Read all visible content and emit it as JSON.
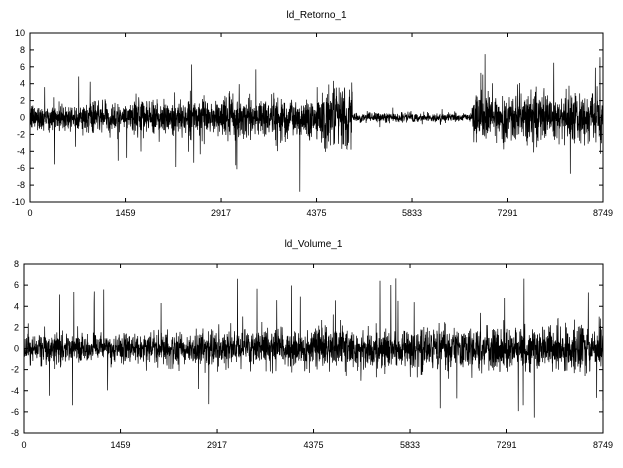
{
  "chart_data": [
    {
      "type": "line",
      "title": "ld_Retorno_1",
      "xlabel": "",
      "ylabel": "",
      "xlim": [
        0,
        8749
      ],
      "ylim": [
        -10,
        10
      ],
      "xticks": [
        0,
        1459,
        2917,
        4375,
        5833,
        7291,
        8749
      ],
      "yticks": [
        -10,
        -8,
        -6,
        -4,
        -2,
        0,
        2,
        4,
        6,
        8,
        10
      ],
      "grid": false,
      "color": "#000000",
      "n_points": 8750,
      "amplitude_profile": [
        {
          "x": [
            0,
            1459
          ],
          "typical_abs": 1.1,
          "extreme_abs": 5.8
        },
        {
          "x": [
            1459,
            2917
          ],
          "typical_abs": 1.4,
          "extreme_abs": 6.5
        },
        {
          "x": [
            2917,
            4375
          ],
          "typical_abs": 1.7,
          "extreme_abs": 9.2
        },
        {
          "x": [
            4375,
            4920
          ],
          "typical_abs": 2.4,
          "extreme_abs": 9.6
        },
        {
          "x": [
            4920,
            6750
          ],
          "typical_abs": 0.35,
          "extreme_abs": 1.2
        },
        {
          "x": [
            6750,
            8749
          ],
          "typical_abs": 1.9,
          "extreme_abs": 7.5
        }
      ]
    },
    {
      "type": "line",
      "title": "ld_Volume_1",
      "xlabel": "",
      "ylabel": "",
      "xlim": [
        0,
        8749
      ],
      "ylim": [
        -8,
        8
      ],
      "xticks": [
        0,
        1459,
        2917,
        4375,
        5833,
        7291,
        8749
      ],
      "yticks": [
        -8,
        -6,
        -4,
        -2,
        0,
        2,
        4,
        6,
        8
      ],
      "grid": false,
      "color": "#000000",
      "n_points": 8750,
      "amplitude_profile": [
        {
          "x": [
            0,
            1459
          ],
          "typical_abs": 0.9,
          "extreme_abs": 5.9
        },
        {
          "x": [
            1459,
            2917
          ],
          "typical_abs": 1.0,
          "extreme_abs": 6.0
        },
        {
          "x": [
            2917,
            4375
          ],
          "typical_abs": 1.2,
          "extreme_abs": 7.0
        },
        {
          "x": [
            4375,
            5833
          ],
          "typical_abs": 1.3,
          "extreme_abs": 6.8
        },
        {
          "x": [
            5833,
            7291
          ],
          "typical_abs": 1.4,
          "extreme_abs": 6.5
        },
        {
          "x": [
            7291,
            8749
          ],
          "typical_abs": 1.4,
          "extreme_abs": 7.2
        }
      ]
    }
  ]
}
